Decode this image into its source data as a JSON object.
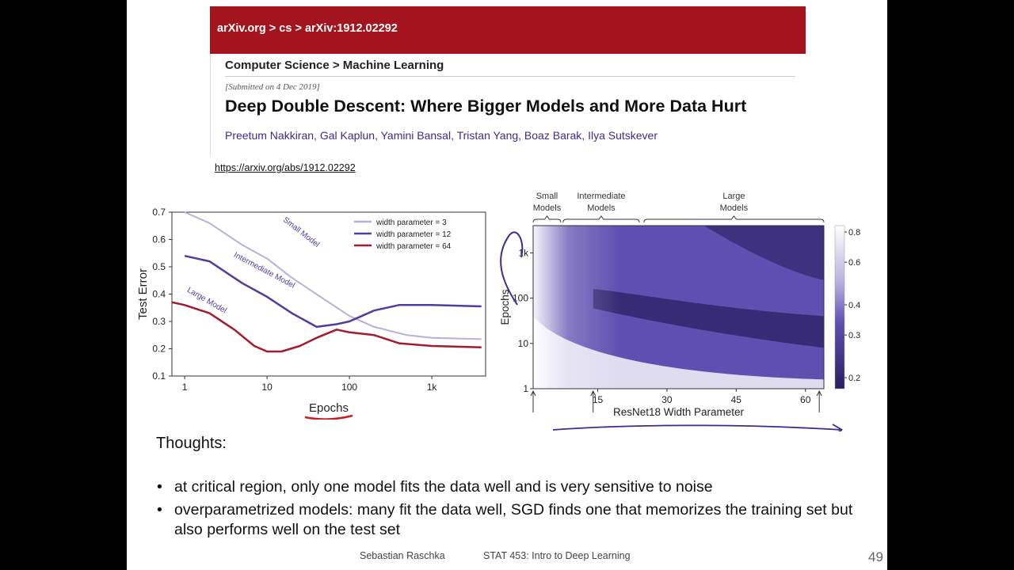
{
  "header": {
    "breadcrumb": "arXiv.org > cs > arXiv:1912.02292",
    "subject": "Computer Science > Machine Learning",
    "submitted": "[Submitted on 4 Dec 2019]",
    "title": "Deep Double Descent: Where Bigger Models and More Data Hurt",
    "authors": "Preetum Nakkiran, Gal Kaplun, Yamini Bansal, Tristan Yang, Boaz Barak, Ilya Sutskever",
    "bar_color": "#a4141f",
    "author_color": "#3a2e8c"
  },
  "link": "https://arxiv.org/abs/1912.02292",
  "thoughts": {
    "heading": "Thoughts:",
    "bullets": [
      "at critical region, only one model fits the data well and is very sensitive to noise",
      "overparametrized models: many fit the data well, SGD finds one that memorizes the training set but also performs well on the test set"
    ]
  },
  "footer": {
    "author": "Sebastian Raschka",
    "course": "STAT 453: Intro to Deep Learning",
    "page": "49"
  },
  "chart_data": [
    {
      "type": "line",
      "xlabel": "Epochs",
      "ylabel": "Test Error",
      "x_scale": "log",
      "xlim": [
        0.7,
        4500
      ],
      "ylim": [
        0.1,
        0.7
      ],
      "x_ticks": [
        {
          "v": 1,
          "label": "1"
        },
        {
          "v": 10,
          "label": "10"
        },
        {
          "v": 100,
          "label": "100"
        },
        {
          "v": 1000,
          "label": "1k"
        }
      ],
      "y_ticks": [
        0.1,
        0.2,
        0.3,
        0.4,
        0.5,
        0.6,
        0.7
      ],
      "legend_position": "top-right",
      "series": [
        {
          "name": "width parameter = 3",
          "color": "#b8b0d8",
          "x": [
            1,
            2,
            5,
            10,
            20,
            50,
            100,
            200,
            500,
            1000,
            4000
          ],
          "y": [
            0.7,
            0.66,
            0.58,
            0.53,
            0.46,
            0.38,
            0.32,
            0.28,
            0.25,
            0.24,
            0.235
          ]
        },
        {
          "name": "width parameter = 12",
          "color": "#4a3fa0",
          "x": [
            1,
            2,
            5,
            10,
            20,
            40,
            70,
            100,
            200,
            400,
            1000,
            4000
          ],
          "y": [
            0.54,
            0.52,
            0.44,
            0.39,
            0.33,
            0.28,
            0.29,
            0.3,
            0.34,
            0.36,
            0.36,
            0.355
          ]
        },
        {
          "name": "width parameter = 64",
          "color": "#a41a2e",
          "x": [
            0.7,
            1,
            2,
            4,
            7,
            10,
            15,
            25,
            40,
            70,
            100,
            200,
            400,
            1000,
            4000
          ],
          "y": [
            0.37,
            0.36,
            0.33,
            0.27,
            0.21,
            0.19,
            0.19,
            0.21,
            0.24,
            0.27,
            0.26,
            0.25,
            0.22,
            0.21,
            0.205
          ]
        }
      ],
      "annotations": [
        "Small Model",
        "Intermediate Model",
        "Large Model"
      ]
    },
    {
      "type": "heatmap",
      "xlabel": "ResNet18 Width Parameter",
      "ylabel": "Epochs",
      "y_scale": "log",
      "x_ticks": [
        15,
        30,
        45,
        60
      ],
      "y_ticks": [
        {
          "v": 1,
          "label": "1"
        },
        {
          "v": 10,
          "label": "10"
        },
        {
          "v": 100,
          "label": "100"
        },
        {
          "v": 1000,
          "label": "1k"
        }
      ],
      "xlim": [
        1,
        64
      ],
      "ylim": [
        1,
        4000
      ],
      "colorbar_ticks": [
        {
          "v": 0.8,
          "label": "0.8"
        },
        {
          "v": 0.6,
          "label": "0.6"
        },
        {
          "v": 0.4,
          "label": "0.4"
        },
        {
          "v": 0.3,
          "label": "0.3"
        },
        {
          "v": 0.2,
          "label": "0.2"
        }
      ],
      "region_labels": [
        {
          "name": "small",
          "text": "Small Models"
        },
        {
          "name": "intermediate",
          "text": "Intermediate Models"
        },
        {
          "name": "large",
          "text": "Large Models"
        }
      ],
      "colors": {
        "high": "#ffffff",
        "mid": "#5e4fb0",
        "low": "#2a1f60"
      }
    }
  ]
}
